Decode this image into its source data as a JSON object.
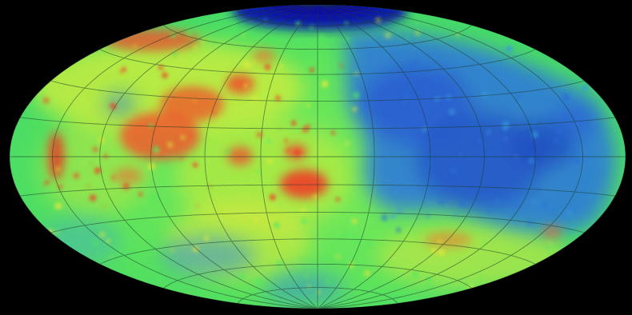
{
  "map": {
    "projection": "hammer-aitoff",
    "colors": {
      "background": "#000000",
      "high": "#f0402a",
      "mid_high": "#e8e83a",
      "mid": "#4ee860",
      "low": "#2a6cd8",
      "lowest": "#0a1aa8",
      "graticule": "#1c3a2a"
    },
    "graticule": {
      "meridian_step_deg": 30,
      "parallel_step_deg": 15
    }
  }
}
